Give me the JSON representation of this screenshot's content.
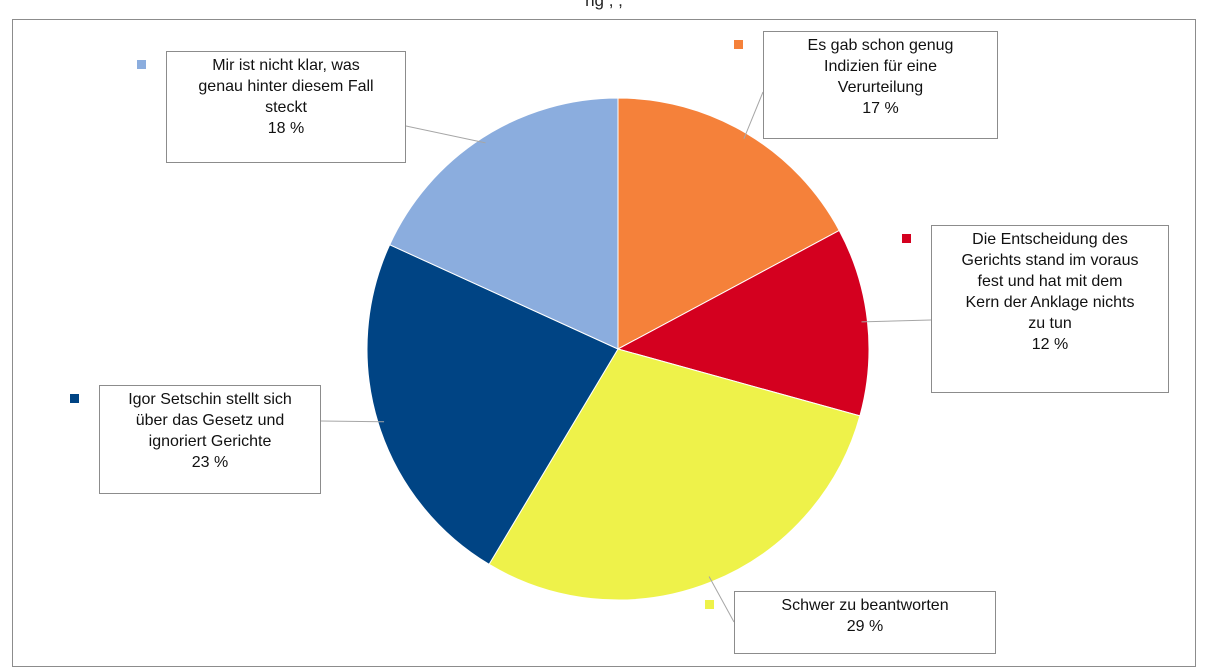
{
  "header": {
    "text": "ng , ,"
  },
  "chart_data": {
    "type": "pie",
    "slices": [
      {
        "label": "Es gab schon genug\nIndizien für eine\nVerurteilung",
        "value": 17,
        "value_label": "17 %",
        "color": "#f5813a"
      },
      {
        "label": "Die Entscheidung des\nGerichts stand im voraus\nfest und hat mit dem\nKern der Anklage nichts\nzu tun",
        "value": 12,
        "value_label": "12 %",
        "color": "#d4001f"
      },
      {
        "label": "Schwer zu beantworten",
        "value": 29,
        "value_label": "29 %",
        "color": "#eef24a"
      },
      {
        "label": "Igor Setschin stellt sich\nüber das Gesetz und\nignoriert Gerichte",
        "value": 23,
        "value_label": "23 %",
        "color": "#004484"
      },
      {
        "label": "Mir ist nicht klar, was\ngenau hinter diesem Fall\nsteckt",
        "value": 18,
        "value_label": "18 %",
        "color": "#8badde"
      }
    ],
    "start": "12 o'clock",
    "direction": "clockwise"
  }
}
